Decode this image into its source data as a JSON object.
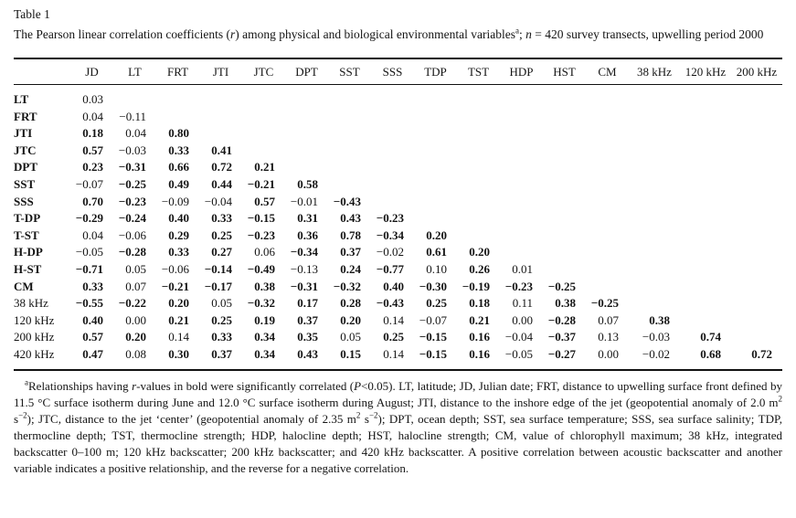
{
  "header": {
    "table_label": "Table 1",
    "caption_runs": [
      {
        "t": "The Pearson linear correlation coefficients ("
      },
      {
        "t": "r",
        "i": true
      },
      {
        "t": ") among physical and biological environmental variables"
      },
      {
        "t": "a",
        "sup": true
      },
      {
        "t": "; "
      },
      {
        "t": "n",
        "i": true
      },
      {
        "t": " = 420 survey transects, upwelling period 2000"
      }
    ]
  },
  "table": {
    "columns": [
      "JD",
      "LT",
      "FRT",
      "JTI",
      "JTC",
      "DPT",
      "SST",
      "SSS",
      "TDP",
      "TST",
      "HDP",
      "HST",
      "CM",
      "38 kHz",
      "120 kHz",
      "200 kHz"
    ],
    "rows": [
      {
        "label": "LT",
        "label_bold": true,
        "values": [
          "0.03"
        ],
        "bold": [
          0
        ]
      },
      {
        "label": "FRT",
        "label_bold": true,
        "values": [
          "0.04",
          "−0.11"
        ],
        "bold": [
          0,
          0
        ]
      },
      {
        "label": "JTI",
        "label_bold": true,
        "values": [
          "0.18",
          "0.04",
          "0.80"
        ],
        "bold": [
          1,
          0,
          1
        ]
      },
      {
        "label": "JTC",
        "label_bold": true,
        "values": [
          "0.57",
          "−0.03",
          "0.33",
          "0.41"
        ],
        "bold": [
          1,
          0,
          1,
          1
        ]
      },
      {
        "label": "DPT",
        "label_bold": true,
        "values": [
          "0.23",
          "−0.31",
          "0.66",
          "0.72",
          "0.21"
        ],
        "bold": [
          1,
          1,
          1,
          1,
          1
        ]
      },
      {
        "label": "SST",
        "label_bold": true,
        "values": [
          "−0.07",
          "−0.25",
          "0.49",
          "0.44",
          "−0.21",
          "0.58"
        ],
        "bold": [
          0,
          1,
          1,
          1,
          1,
          1
        ]
      },
      {
        "label": "SSS",
        "label_bold": true,
        "values": [
          "0.70",
          "−0.23",
          "−0.09",
          "−0.04",
          "0.57",
          "−0.01",
          "−0.43"
        ],
        "bold": [
          1,
          1,
          0,
          0,
          1,
          0,
          1
        ]
      },
      {
        "label": "T-DP",
        "label_bold": true,
        "values": [
          "−0.29",
          "−0.24",
          "0.40",
          "0.33",
          "−0.15",
          "0.31",
          "0.43",
          "−0.23"
        ],
        "bold": [
          1,
          1,
          1,
          1,
          1,
          1,
          1,
          1
        ]
      },
      {
        "label": "T-ST",
        "label_bold": true,
        "values": [
          "0.04",
          "−0.06",
          "0.29",
          "0.25",
          "−0.23",
          "0.36",
          "0.78",
          "−0.34",
          "0.20"
        ],
        "bold": [
          0,
          0,
          1,
          1,
          1,
          1,
          1,
          1,
          1
        ]
      },
      {
        "label": "H-DP",
        "label_bold": true,
        "values": [
          "−0.05",
          "−0.28",
          "0.33",
          "0.27",
          "0.06",
          "−0.34",
          "0.37",
          "−0.02",
          "0.61",
          "0.20"
        ],
        "bold": [
          0,
          1,
          1,
          1,
          0,
          1,
          1,
          0,
          1,
          1
        ]
      },
      {
        "label": "H-ST",
        "label_bold": true,
        "values": [
          "−0.71",
          "0.05",
          "−0.06",
          "−0.14",
          "−0.49",
          "−0.13",
          "0.24",
          "−0.77",
          "0.10",
          "0.26",
          "0.01"
        ],
        "bold": [
          1,
          0,
          0,
          1,
          1,
          0,
          1,
          1,
          0,
          1,
          0
        ]
      },
      {
        "label": "CM",
        "label_bold": true,
        "values": [
          "0.33",
          "0.07",
          "−0.21",
          "−0.17",
          "0.38",
          "−0.31",
          "−0.32",
          "0.40",
          "−0.30",
          "−0.19",
          "−0.23",
          "−0.25"
        ],
        "bold": [
          1,
          0,
          1,
          1,
          1,
          1,
          1,
          1,
          1,
          1,
          1,
          1
        ]
      },
      {
        "label": "38 kHz",
        "label_bold": false,
        "values": [
          "−0.55",
          "−0.22",
          "0.20",
          "0.05",
          "−0.32",
          "0.17",
          "0.28",
          "−0.43",
          "0.25",
          "0.18",
          "0.11",
          "0.38",
          "−0.25"
        ],
        "bold": [
          1,
          1,
          1,
          0,
          1,
          1,
          1,
          1,
          1,
          1,
          0,
          1,
          1
        ]
      },
      {
        "label": "120 kHz",
        "label_bold": false,
        "values": [
          "0.40",
          "0.00",
          "0.21",
          "0.25",
          "0.19",
          "0.37",
          "0.20",
          "0.14",
          "−0.07",
          "0.21",
          "0.00",
          "−0.28",
          "0.07",
          "0.38"
        ],
        "bold": [
          1,
          0,
          1,
          1,
          1,
          1,
          1,
          0,
          0,
          1,
          0,
          1,
          0,
          1
        ]
      },
      {
        "label": "200 kHz",
        "label_bold": false,
        "values": [
          "0.57",
          "0.20",
          "0.14",
          "0.33",
          "0.34",
          "0.35",
          "0.05",
          "0.25",
          "−0.15",
          "0.16",
          "−0.04",
          "−0.37",
          "0.13",
          "−0.03",
          "0.74"
        ],
        "bold": [
          1,
          1,
          0,
          1,
          1,
          1,
          0,
          1,
          1,
          1,
          0,
          1,
          0,
          0,
          1
        ]
      },
      {
        "label": "420 kHz",
        "label_bold": false,
        "values": [
          "0.47",
          "0.08",
          "0.30",
          "0.37",
          "0.34",
          "0.43",
          "0.15",
          "0.14",
          "−0.15",
          "0.16",
          "−0.05",
          "−0.27",
          "0.00",
          "−0.02",
          "0.68",
          "0.72"
        ],
        "bold": [
          1,
          0,
          1,
          1,
          1,
          1,
          1,
          0,
          1,
          1,
          0,
          1,
          0,
          0,
          1,
          1
        ]
      }
    ]
  },
  "footnote": {
    "runs": [
      {
        "t": "a",
        "sup": true
      },
      {
        "t": "Relationships having "
      },
      {
        "t": "r",
        "i": true
      },
      {
        "t": "-values in bold were significantly correlated ("
      },
      {
        "t": "P",
        "i": true
      },
      {
        "t": "<0.05). LT, latitude; JD, Julian date; FRT, distance to upwelling surface front defined by 11.5 °C surface isotherm during June and 12.0 °C surface isotherm during August; JTI, distance to the inshore edge of the jet (geopotential anomaly of 2.0 m"
      },
      {
        "t": "2",
        "sup": true
      },
      {
        "t": " s"
      },
      {
        "t": "−2",
        "sup": true
      },
      {
        "t": "); JTC, distance to the jet ‘center’ (geopotential anomaly of 2.35 m"
      },
      {
        "t": "2",
        "sup": true
      },
      {
        "t": " s"
      },
      {
        "t": "−2",
        "sup": true
      },
      {
        "t": "); DPT, ocean depth; SST, sea surface temperature; SSS, sea surface salinity; TDP, thermocline depth; TST, thermocline strength; HDP, halocline depth; HST, halocline strength; CM, value of chlorophyll maximum; 38 kHz, integrated backscatter 0–100 m; 120 kHz backscatter; 200 kHz backscatter; and 420 kHz backscatter. A positive correlation between acoustic backscatter and another variable indicates a positive relationship, and the reverse for a negative correlation."
      }
    ]
  }
}
